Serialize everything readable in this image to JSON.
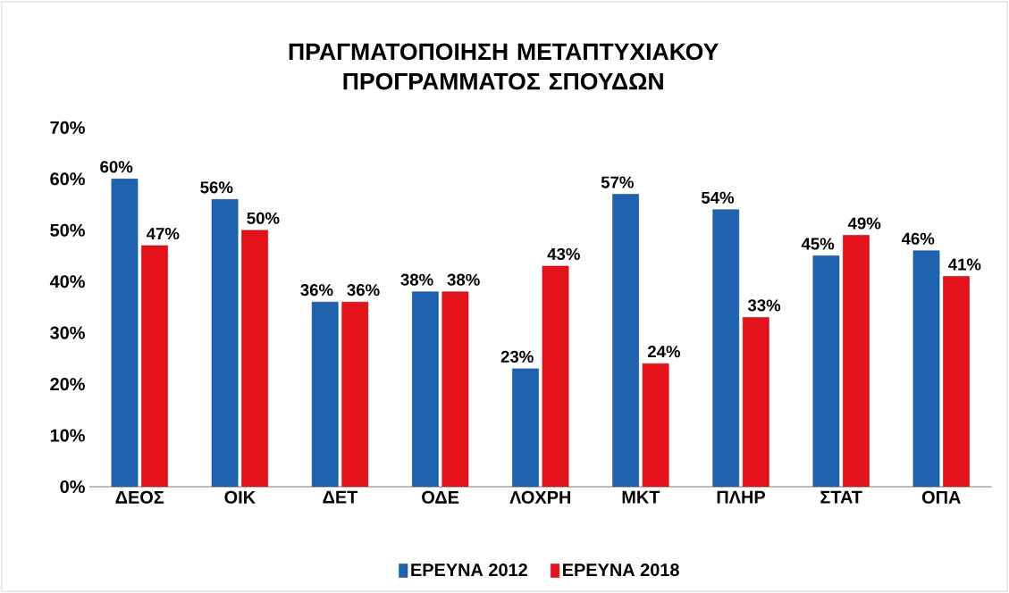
{
  "chart_data": {
    "type": "bar",
    "title": "ΠΡΑΓΜΑΤΟΠΟΙΗΣΗ ΜΕΤΑΠΤΥΧΙΑΚΟΥ ΠΡΟΓΡΑΜΜΑΤΟΣ ΣΠΟΥΔΩΝ",
    "categories": [
      "ΔΕΟΣ",
      "ΟΙΚ",
      "ΔΕΤ",
      "ΟΔΕ",
      "ΛΟΧΡΗ",
      "ΜΚΤ",
      "ΠΛΗΡ",
      "ΣΤΑΤ",
      "ΟΠΑ"
    ],
    "series": [
      {
        "name": "ΕΡΕΥΝΑ 2012",
        "color": "#1f63b0",
        "values": [
          60,
          56,
          36,
          38,
          23,
          57,
          54,
          45,
          46
        ],
        "value_labels": [
          "60%",
          "56%",
          "36%",
          "38%",
          "23%",
          "57%",
          "54%",
          "45%",
          "46%"
        ]
      },
      {
        "name": "ΕΡΕΥΝΑ 2018",
        "color": "#e3121b",
        "values": [
          47,
          50,
          36,
          38,
          43,
          24,
          33,
          49,
          41
        ],
        "value_labels": [
          "47%",
          "50%",
          "36%",
          "38%",
          "43%",
          "24%",
          "33%",
          "49%",
          "41%"
        ]
      }
    ],
    "ylim": [
      0,
      70
    ],
    "yticks": [
      {
        "value": 0,
        "label": "0%"
      },
      {
        "value": 10,
        "label": "10%"
      },
      {
        "value": 20,
        "label": "20%"
      },
      {
        "value": 30,
        "label": "30%"
      },
      {
        "value": 40,
        "label": "40%"
      },
      {
        "value": 50,
        "label": "50%"
      },
      {
        "value": 60,
        "label": "60%"
      },
      {
        "value": 70,
        "label": "70%"
      }
    ],
    "grid": false,
    "legend": "bottom"
  }
}
